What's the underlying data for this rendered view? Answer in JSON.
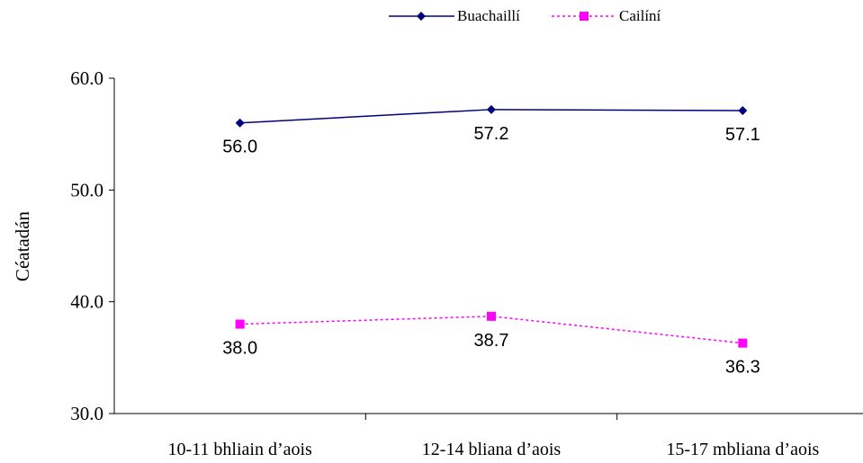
{
  "chart_data": {
    "type": "line",
    "categories": [
      "10-11 bhliain d’aois",
      "12-14 bliana d’aois",
      "15-17 mbliana d’aois"
    ],
    "series": [
      {
        "name": "Buachaillí",
        "values": [
          56.0,
          57.2,
          57.1
        ],
        "labels": [
          "56.0",
          "57.2",
          "57.1"
        ],
        "color": "#000080",
        "marker": "diamond",
        "line": "solid"
      },
      {
        "name": "Cailíní",
        "values": [
          38.0,
          38.7,
          36.3
        ],
        "labels": [
          "38.0",
          "38.7",
          "36.3"
        ],
        "color": "#FF00FF",
        "marker": "square",
        "line": "dotted"
      }
    ],
    "ylabel": "Céatadán",
    "ylim": [
      30,
      60
    ],
    "yticks": [
      "30.0",
      "40.0",
      "50.0",
      "60.0"
    ],
    "grid": false,
    "legend": "top-center"
  }
}
